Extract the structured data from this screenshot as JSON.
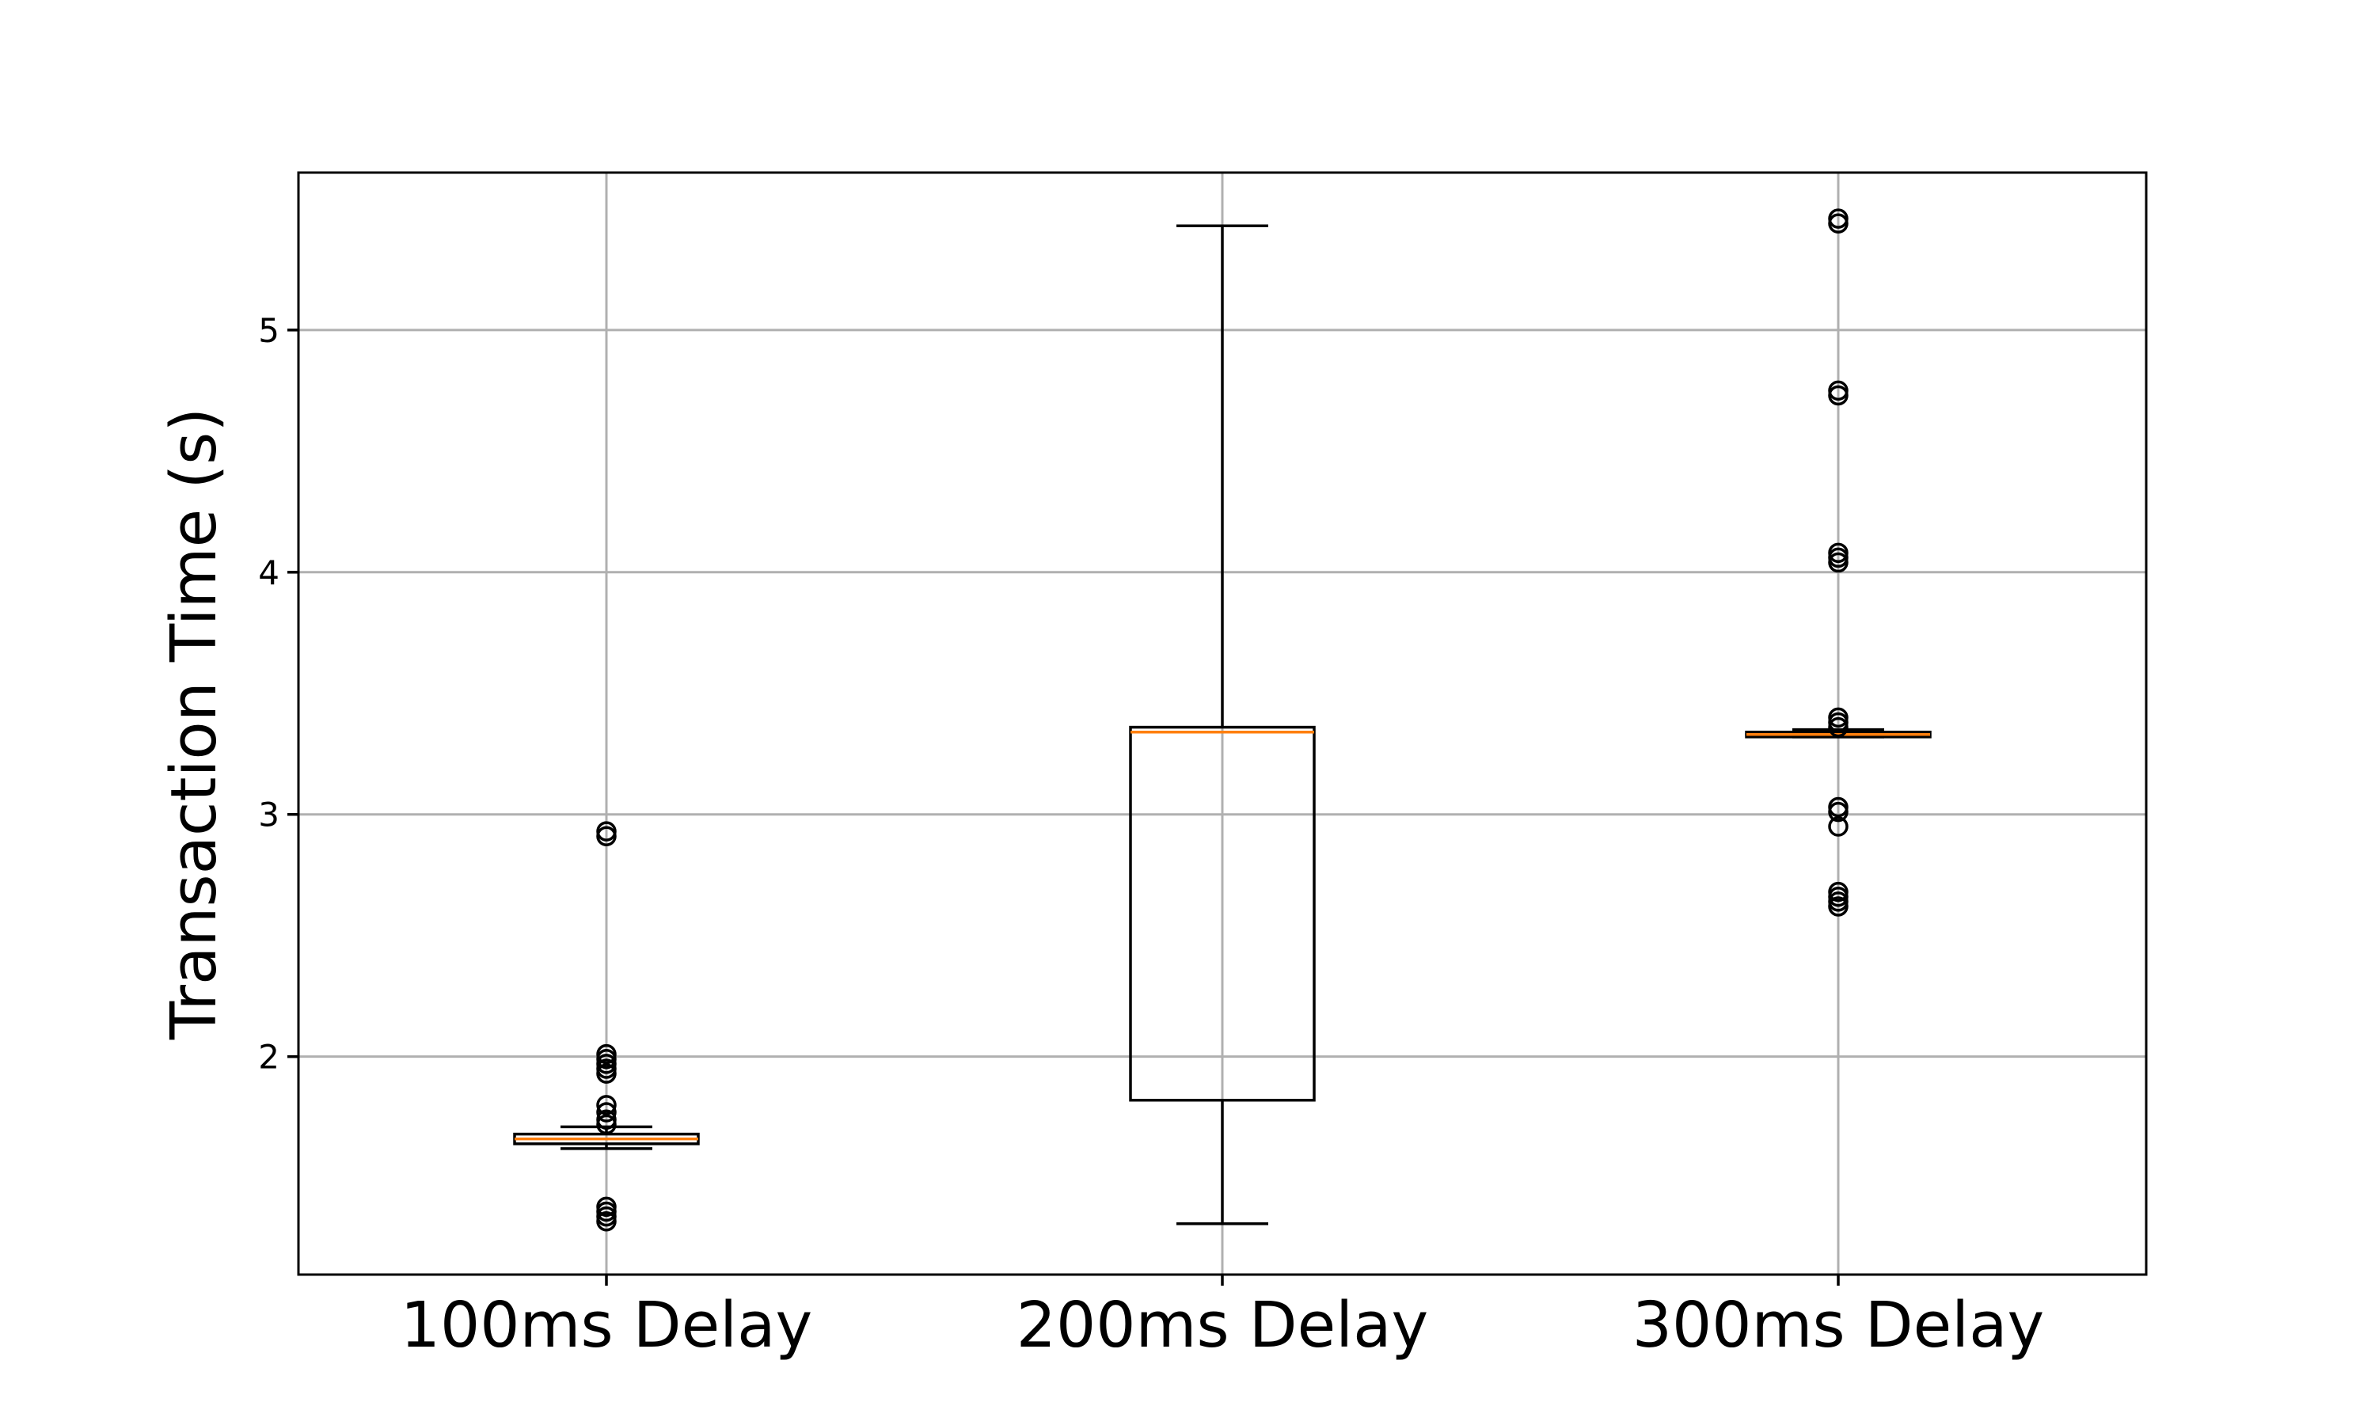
{
  "chart_data": {
    "type": "box",
    "title": "",
    "xlabel": "",
    "ylabel": "Transaction Time (s)",
    "ylim": [
      1.1,
      5.65
    ],
    "yticks": [
      2,
      3,
      4,
      5
    ],
    "grid": true,
    "categories": [
      "100ms Delay",
      "200ms Delay",
      "300ms Delay"
    ],
    "boxes": [
      {
        "category": "100ms Delay",
        "whisker_low": 1.62,
        "q1": 1.64,
        "median": 1.66,
        "q3": 1.68,
        "whisker_high": 1.71,
        "fliers": [
          1.32,
          1.34,
          1.36,
          1.38,
          1.72,
          1.74,
          1.77,
          1.8,
          1.93,
          1.95,
          1.97,
          1.99,
          2.01,
          2.91,
          2.93
        ]
      },
      {
        "category": "200ms Delay",
        "whisker_low": 1.31,
        "q1": 1.82,
        "median": 3.34,
        "q3": 3.36,
        "whisker_high": 5.43,
        "fliers": []
      },
      {
        "category": "300ms Delay",
        "whisker_low": 3.32,
        "q1": 3.32,
        "median": 3.33,
        "q3": 3.34,
        "whisker_high": 3.35,
        "fliers": [
          2.62,
          2.64,
          2.66,
          2.68,
          2.95,
          3.01,
          3.03,
          3.36,
          3.38,
          3.4,
          4.04,
          4.06,
          4.08,
          4.73,
          4.75,
          5.44,
          5.46
        ]
      }
    ],
    "colors": {
      "box": "#000000",
      "median": "#ff7f0e",
      "grid": "#b0b0b0"
    }
  }
}
